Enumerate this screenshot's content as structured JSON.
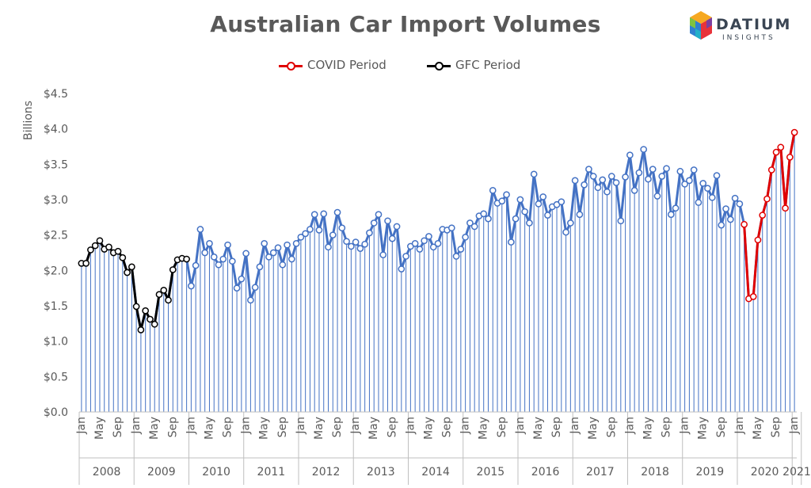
{
  "title": "Australian Car Import Volumes",
  "logo": {
    "word": "DATIUM",
    "sub": "INSIGHTS"
  },
  "colors": {
    "base": "#4472c4",
    "covid": "#e00000",
    "gfc": "#000000",
    "axis": "#595959",
    "grid": "#d9d9d9"
  },
  "chart_data": {
    "type": "line",
    "title": "Australian Car Import Volumes",
    "ylabel": "Billions",
    "ylim": [
      0,
      4.5
    ],
    "yticks": [
      0,
      0.5,
      1.0,
      1.5,
      2.0,
      2.5,
      3.0,
      3.5,
      4.0,
      4.5
    ],
    "ytick_labels": [
      "$0.0",
      "$0.5",
      "$1.0",
      "$1.5",
      "$2.0",
      "$2.5",
      "$3.0",
      "$3.5",
      "$4.0",
      "$4.5"
    ],
    "month_labels": [
      "Jan",
      "May",
      "Sep"
    ],
    "years": [
      {
        "label": "2008",
        "months": 12
      },
      {
        "label": "2009",
        "months": 12
      },
      {
        "label": "2010",
        "months": 12
      },
      {
        "label": "2011",
        "months": 12
      },
      {
        "label": "2012",
        "months": 12
      },
      {
        "label": "2013",
        "months": 12
      },
      {
        "label": "2014",
        "months": 12
      },
      {
        "label": "2015",
        "months": 12
      },
      {
        "label": "2016",
        "months": 12
      },
      {
        "label": "2017",
        "months": 12
      },
      {
        "label": "2018",
        "months": 12
      },
      {
        "label": "2019",
        "months": 12
      },
      {
        "label": "2020",
        "months": 12
      },
      {
        "label": "2021",
        "months": 2
      }
    ],
    "values": [
      2.1,
      2.1,
      2.29,
      2.35,
      2.42,
      2.3,
      2.33,
      2.25,
      2.27,
      2.18,
      1.97,
      2.05,
      1.49,
      1.16,
      1.43,
      1.31,
      1.24,
      1.66,
      1.72,
      1.58,
      2.01,
      2.15,
      2.17,
      2.16,
      1.78,
      2.07,
      2.58,
      2.25,
      2.38,
      2.19,
      2.08,
      2.16,
      2.36,
      2.13,
      1.75,
      1.88,
      2.24,
      1.58,
      1.76,
      2.05,
      2.38,
      2.19,
      2.25,
      2.32,
      2.08,
      2.36,
      2.16,
      2.38,
      2.47,
      2.52,
      2.58,
      2.79,
      2.57,
      2.8,
      2.33,
      2.5,
      2.82,
      2.6,
      2.41,
      2.34,
      2.4,
      2.31,
      2.37,
      2.53,
      2.67,
      2.79,
      2.22,
      2.7,
      2.45,
      2.62,
      2.02,
      2.2,
      2.34,
      2.38,
      2.3,
      2.42,
      2.48,
      2.33,
      2.38,
      2.58,
      2.57,
      2.6,
      2.2,
      2.3,
      2.47,
      2.67,
      2.62,
      2.77,
      2.8,
      2.73,
      3.13,
      2.95,
      2.98,
      3.07,
      2.4,
      2.73,
      3.0,
      2.83,
      2.67,
      3.36,
      2.94,
      3.04,
      2.78,
      2.9,
      2.93,
      2.97,
      2.54,
      2.67,
      3.27,
      2.79,
      3.21,
      3.43,
      3.33,
      3.17,
      3.28,
      3.11,
      3.33,
      3.24,
      2.7,
      3.32,
      3.63,
      3.13,
      3.38,
      3.71,
      3.29,
      3.43,
      3.05,
      3.33,
      3.44,
      2.79,
      2.88,
      3.4,
      3.22,
      3.27,
      3.42,
      2.96,
      3.23,
      3.16,
      3.03,
      3.34,
      2.64,
      2.87,
      2.72,
      3.02,
      2.94,
      2.65,
      1.6,
      1.63,
      2.43,
      2.78,
      3.01,
      3.42,
      3.67,
      3.74,
      2.88,
      3.6,
      3.95
    ],
    "series": [
      {
        "name": "COVID Period",
        "start": 145,
        "end": 157
      },
      {
        "name": "GFC Period",
        "start": 0,
        "end": 23
      }
    ]
  }
}
